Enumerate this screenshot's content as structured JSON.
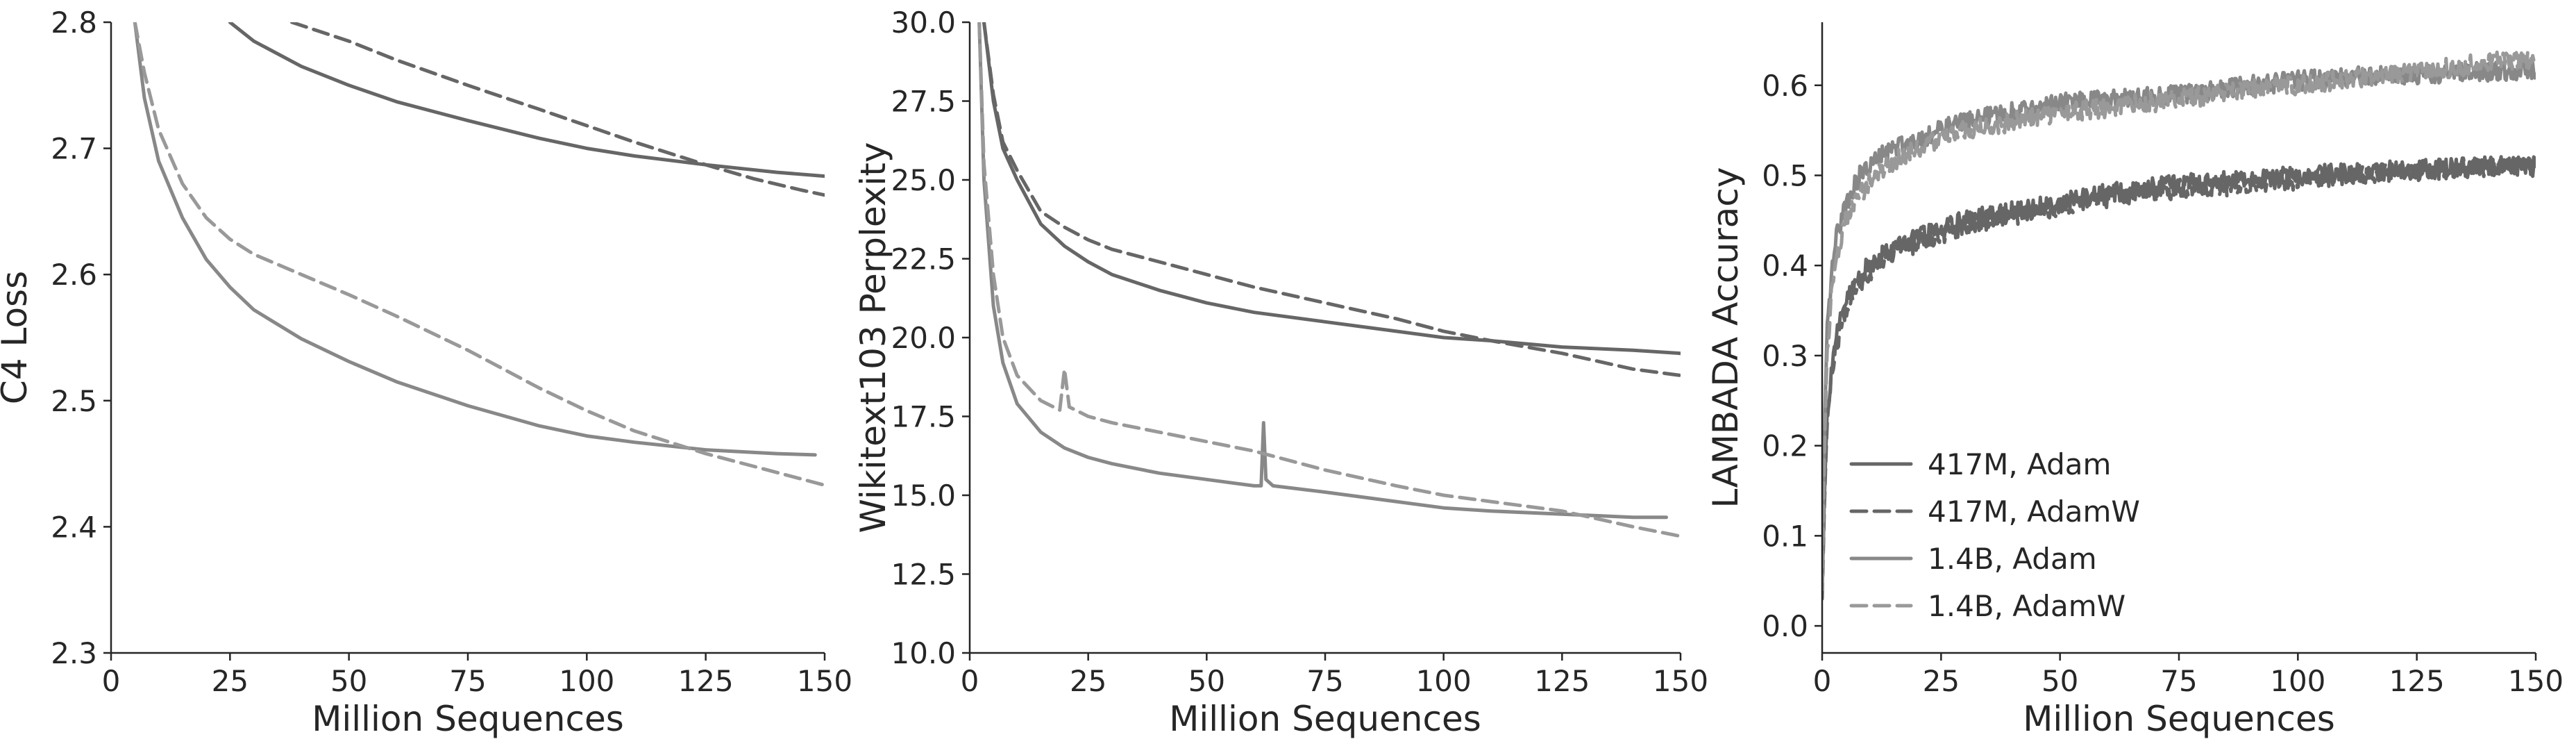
{
  "chart_data": [
    {
      "type": "line",
      "xlabel": "Million Sequences",
      "ylabel": "C4 Loss",
      "xlim": [
        0,
        150
      ],
      "ylim": [
        2.3,
        2.8
      ],
      "xticks": [
        0,
        25,
        50,
        75,
        100,
        125,
        150
      ],
      "yticks": [
        2.3,
        2.4,
        2.5,
        2.6,
        2.7,
        2.8
      ],
      "ytick_decimals": 1,
      "grid": false,
      "series": [
        {
          "color": "#666666",
          "dash": "solid",
          "x": [
            25,
            30,
            40,
            50,
            60,
            75,
            90,
            100,
            110,
            125,
            140,
            150
          ],
          "y": [
            2.8,
            2.785,
            2.765,
            2.75,
            2.737,
            2.722,
            2.708,
            2.7,
            2.694,
            2.687,
            2.681,
            2.678
          ]
        },
        {
          "color": "#666666",
          "dash": "dashed",
          "x": [
            38,
            50,
            60,
            75,
            90,
            100,
            110,
            120,
            125,
            135,
            145,
            150
          ],
          "y": [
            2.8,
            2.785,
            2.77,
            2.75,
            2.731,
            2.718,
            2.705,
            2.693,
            2.687,
            2.676,
            2.667,
            2.663
          ]
        },
        {
          "color": "#888888",
          "dash": "solid",
          "x": [
            5,
            7,
            10,
            15,
            20,
            25,
            30,
            40,
            50,
            60,
            75,
            90,
            100,
            110,
            125,
            140,
            148
          ],
          "y": [
            2.8,
            2.74,
            2.69,
            2.645,
            2.612,
            2.59,
            2.572,
            2.549,
            2.531,
            2.515,
            2.496,
            2.48,
            2.472,
            2.467,
            2.461,
            2.458,
            2.457
          ]
        },
        {
          "color": "#999999",
          "dash": "dashed",
          "x": [
            5,
            7,
            10,
            15,
            20,
            25,
            30,
            40,
            50,
            60,
            75,
            90,
            100,
            110,
            125,
            140,
            150
          ],
          "y": [
            2.8,
            2.76,
            2.715,
            2.672,
            2.645,
            2.628,
            2.616,
            2.6,
            2.584,
            2.567,
            2.54,
            2.51,
            2.492,
            2.476,
            2.458,
            2.443,
            2.433
          ]
        }
      ]
    },
    {
      "type": "line",
      "xlabel": "Million Sequences",
      "ylabel": "Wikitext103 Perplexity",
      "xlim": [
        0,
        150
      ],
      "ylim": [
        10.0,
        30.0
      ],
      "xticks": [
        0,
        25,
        50,
        75,
        100,
        125,
        150
      ],
      "yticks": [
        10.0,
        12.5,
        15.0,
        17.5,
        20.0,
        22.5,
        25.0,
        27.5,
        30.0
      ],
      "ytick_decimals": 1,
      "grid": false,
      "series": [
        {
          "color": "#666666",
          "dash": "solid",
          "x": [
            3,
            5,
            7,
            10,
            15,
            20,
            25,
            30,
            40,
            50,
            60,
            75,
            90,
            100,
            110,
            125,
            140,
            150
          ],
          "y": [
            30.0,
            27.5,
            26.0,
            25.0,
            23.6,
            22.9,
            22.4,
            22.0,
            21.5,
            21.1,
            20.8,
            20.5,
            20.2,
            20.0,
            19.9,
            19.7,
            19.6,
            19.5
          ]
        },
        {
          "color": "#666666",
          "dash": "dashed",
          "x": [
            3,
            5,
            7,
            10,
            15,
            20,
            25,
            30,
            40,
            50,
            60,
            75,
            90,
            100,
            110,
            125,
            140,
            150
          ],
          "y": [
            30.0,
            27.7,
            26.2,
            25.3,
            24.0,
            23.5,
            23.1,
            22.8,
            22.4,
            22.0,
            21.6,
            21.1,
            20.6,
            20.2,
            19.9,
            19.5,
            19.0,
            18.8
          ]
        },
        {
          "color": "#888888",
          "dash": "solid",
          "x": [
            2,
            3,
            5,
            7,
            10,
            15,
            20,
            25,
            30,
            40,
            50,
            60,
            61.5,
            62,
            62.5,
            64,
            75,
            90,
            100,
            110,
            125,
            140,
            147
          ],
          "y": [
            30.0,
            25.0,
            21.0,
            19.2,
            17.9,
            17.0,
            16.5,
            16.2,
            16.0,
            15.7,
            15.5,
            15.3,
            15.3,
            17.3,
            15.5,
            15.3,
            15.1,
            14.8,
            14.6,
            14.5,
            14.4,
            14.3,
            14.3
          ]
        },
        {
          "color": "#999999",
          "dash": "dashed",
          "x": [
            2,
            3,
            5,
            7,
            10,
            15,
            19,
            20,
            21,
            25,
            30,
            40,
            50,
            60,
            75,
            90,
            100,
            110,
            125,
            140,
            150
          ],
          "y": [
            30.0,
            25.5,
            22.0,
            20.0,
            18.8,
            18.0,
            17.7,
            19.0,
            17.8,
            17.5,
            17.3,
            17.0,
            16.7,
            16.4,
            15.8,
            15.3,
            15.0,
            14.8,
            14.5,
            14.0,
            13.7
          ]
        }
      ]
    },
    {
      "type": "line",
      "xlabel": "Million Sequences",
      "ylabel": "LAMBADA Accuracy",
      "xlim": [
        0,
        150
      ],
      "ylim": [
        -0.03,
        0.67
      ],
      "xticks": [
        0,
        25,
        50,
        75,
        100,
        125,
        150
      ],
      "yticks": [
        0.0,
        0.1,
        0.2,
        0.3,
        0.4,
        0.5,
        0.6
      ],
      "ytick_decimals": 1,
      "grid": false,
      "legend": "lower-left",
      "series": [
        {
          "name": "417M, Adam",
          "color": "#666666",
          "dash": "solid",
          "noise": 0.011,
          "x": [
            0,
            0.5,
            1,
            2,
            3,
            5,
            8,
            12,
            15,
            20,
            25,
            30,
            40,
            50,
            60,
            75,
            90,
            100,
            110,
            125,
            140,
            150
          ],
          "y": [
            0.04,
            0.15,
            0.23,
            0.29,
            0.32,
            0.36,
            0.39,
            0.41,
            0.42,
            0.43,
            0.44,
            0.45,
            0.46,
            0.47,
            0.48,
            0.49,
            0.495,
            0.5,
            0.503,
            0.507,
            0.51,
            0.51
          ]
        },
        {
          "name": "417M, AdamW",
          "color": "#666666",
          "dash": "dashed",
          "noise": 0.011,
          "x": [
            0,
            0.5,
            1,
            2,
            3,
            5,
            8,
            12,
            15,
            20,
            25,
            30,
            40,
            50,
            60,
            75,
            90,
            100,
            110,
            125,
            140,
            150
          ],
          "y": [
            0.03,
            0.14,
            0.22,
            0.28,
            0.31,
            0.35,
            0.38,
            0.405,
            0.415,
            0.425,
            0.435,
            0.445,
            0.455,
            0.465,
            0.475,
            0.485,
            0.49,
            0.495,
            0.5,
            0.505,
            0.51,
            0.51
          ]
        },
        {
          "name": "1.4B, Adam",
          "color": "#888888",
          "dash": "solid",
          "noise": 0.011,
          "x": [
            0,
            0.5,
            1,
            2,
            3,
            5,
            8,
            12,
            15,
            20,
            25,
            30,
            40,
            50,
            60,
            75,
            90,
            100,
            110,
            125,
            140,
            150
          ],
          "y": [
            0.05,
            0.22,
            0.32,
            0.39,
            0.43,
            0.47,
            0.5,
            0.52,
            0.53,
            0.54,
            0.55,
            0.56,
            0.57,
            0.58,
            0.585,
            0.59,
            0.6,
            0.605,
            0.61,
            0.612,
            0.615,
            0.615
          ]
        },
        {
          "name": "1.4B, AdamW",
          "color": "#999999",
          "dash": "dashed",
          "noise": 0.011,
          "x": [
            0,
            0.5,
            1,
            2,
            3,
            5,
            8,
            12,
            15,
            20,
            25,
            30,
            40,
            50,
            60,
            75,
            90,
            100,
            110,
            125,
            140,
            150
          ],
          "y": [
            0.04,
            0.2,
            0.3,
            0.37,
            0.41,
            0.45,
            0.48,
            0.505,
            0.515,
            0.53,
            0.54,
            0.55,
            0.56,
            0.57,
            0.575,
            0.585,
            0.595,
            0.6,
            0.607,
            0.615,
            0.625,
            0.63
          ]
        }
      ]
    }
  ]
}
